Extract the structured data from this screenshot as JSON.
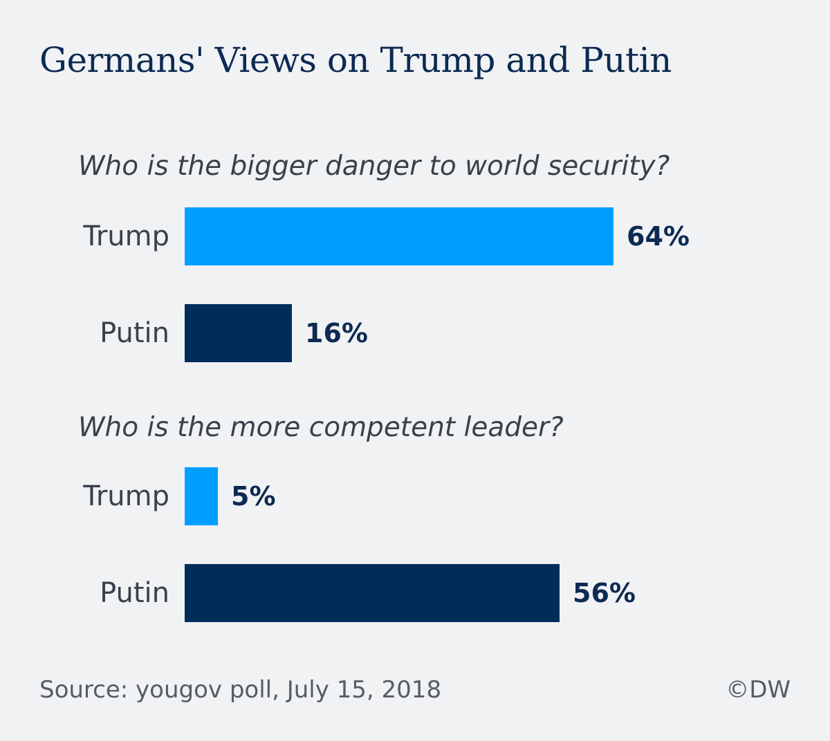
{
  "chart_data": {
    "type": "bar",
    "orientation": "horizontal",
    "title": "Germans' Views on Trump and Putin",
    "xlim": [
      0,
      100
    ],
    "groups": [
      {
        "question": "Who is the bigger danger to world security?",
        "bars": [
          {
            "label": "Trump",
            "value": 64,
            "value_label": "64%",
            "color": "#009fff"
          },
          {
            "label": "Putin",
            "value": 16,
            "value_label": "16%",
            "color": "#002c5a"
          }
        ]
      },
      {
        "question": "Who is the more competent leader?",
        "bars": [
          {
            "label": "Trump",
            "value": 5,
            "value_label": "5%",
            "color": "#009fff"
          },
          {
            "label": "Putin",
            "value": 56,
            "value_label": "56%",
            "color": "#002c5a"
          }
        ]
      }
    ],
    "source": "Source: yougov poll, July 15, 2018",
    "credit": "©DW"
  }
}
